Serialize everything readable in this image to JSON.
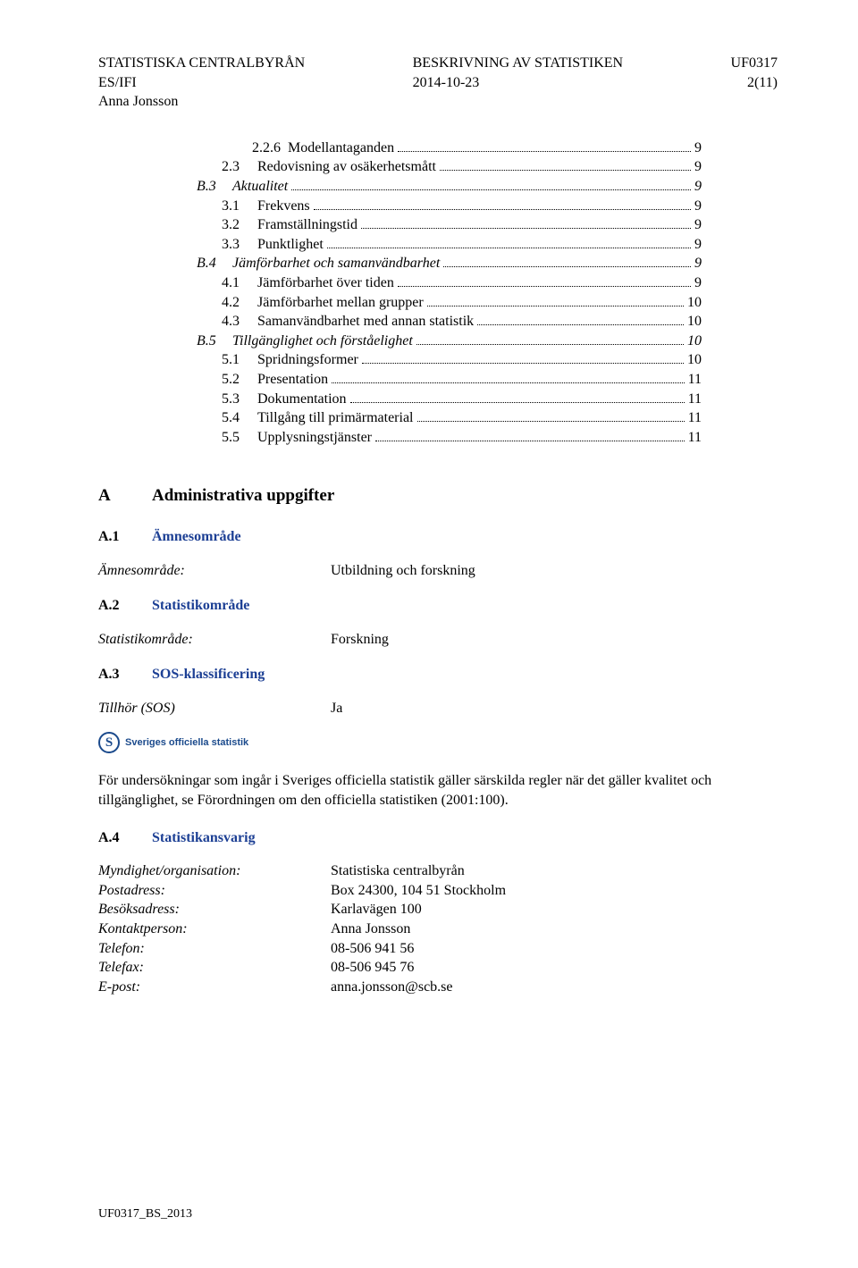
{
  "header": {
    "left_line1": "STATISTISKA CENTRALBYRÅN",
    "left_line2": "ES/IFI",
    "left_line3": "Anna Jonsson",
    "center_line1": "BESKRIVNING AV STATISTIKEN",
    "center_line2": "2014-10-23",
    "right_line1": "UF0317",
    "right_line2": "2(11)"
  },
  "toc": [
    {
      "indent": 2,
      "italic": false,
      "num": "2.2.6",
      "title": "Modellantaganden",
      "page": "9"
    },
    {
      "indent": 1,
      "italic": false,
      "num": "2.3",
      "title": "Redovisning av osäkerhetsmått",
      "page": "9"
    },
    {
      "indent": 0,
      "italic": true,
      "num": "B.3",
      "title": "Aktualitet",
      "page": "9"
    },
    {
      "indent": 1,
      "italic": false,
      "num": "3.1",
      "title": "Frekvens",
      "page": "9"
    },
    {
      "indent": 1,
      "italic": false,
      "num": "3.2",
      "title": "Framställningstid",
      "page": "9"
    },
    {
      "indent": 1,
      "italic": false,
      "num": "3.3",
      "title": "Punktlighet",
      "page": "9"
    },
    {
      "indent": 0,
      "italic": true,
      "num": "B.4",
      "title": "Jämförbarhet och samanvändbarhet",
      "page": "9"
    },
    {
      "indent": 1,
      "italic": false,
      "num": "4.1",
      "title": "Jämförbarhet över tiden",
      "page": "9"
    },
    {
      "indent": 1,
      "italic": false,
      "num": "4.2",
      "title": "Jämförbarhet mellan grupper",
      "page": "10"
    },
    {
      "indent": 1,
      "italic": false,
      "num": "4.3",
      "title": "Samanvändbarhet med annan statistik",
      "page": "10"
    },
    {
      "indent": 0,
      "italic": true,
      "num": "B.5",
      "title": "Tillgänglighet och förståelighet",
      "page": "10"
    },
    {
      "indent": 1,
      "italic": false,
      "num": "5.1",
      "title": "Spridningsformer",
      "page": "10"
    },
    {
      "indent": 1,
      "italic": false,
      "num": "5.2",
      "title": "Presentation",
      "page": "11"
    },
    {
      "indent": 1,
      "italic": false,
      "num": "5.3",
      "title": "Dokumentation",
      "page": "11"
    },
    {
      "indent": 1,
      "italic": false,
      "num": "5.4",
      "title": "Tillgång till primärmaterial",
      "page": "11"
    },
    {
      "indent": 1,
      "italic": false,
      "num": "5.5",
      "title": "Upplysningstjänster",
      "page": "11"
    }
  ],
  "sectionA": {
    "letter": "A",
    "title": "Administrativa uppgifter",
    "a1": {
      "num": "A.1",
      "title": "Ämnesområde",
      "key": "Ämnesområde:",
      "val": "Utbildning och forskning"
    },
    "a2": {
      "num": "A.2",
      "title": "Statistikområde",
      "key": "Statistikområde:",
      "val": "Forskning"
    },
    "a3": {
      "num": "A.3",
      "title": "SOS-klassificering",
      "key": "Tillhör (SOS)",
      "val": "Ja",
      "logo_text": "Sveriges officiella statistik",
      "paragraph": "För undersökningar som ingår i Sveriges officiella statistik gäller särskilda regler när det gäller kvalitet och tillgänglighet, se Förordningen om den officiella statistiken (2001:100)."
    },
    "a4": {
      "num": "A.4",
      "title": "Statistikansvarig",
      "rows": [
        {
          "key": "Myndighet/organisation:",
          "val": "Statistiska centralbyrån"
        },
        {
          "key": "Postadress:",
          "val": "Box 24300, 104 51 Stockholm"
        },
        {
          "key": "Besöksadress:",
          "val": "Karlavägen 100"
        },
        {
          "key": "Kontaktperson:",
          "val": "Anna Jonsson"
        },
        {
          "key": "Telefon:",
          "val": "08-506 941 56"
        },
        {
          "key": "Telefax:",
          "val": "08-506 945 76"
        },
        {
          "key": "E-post:",
          "val": "anna.jonsson@scb.se"
        }
      ]
    }
  },
  "footer": "UF0317_BS_2013",
  "colors": {
    "heading_blue": "#1c3f94",
    "logo_blue": "#1b4a8c",
    "text": "#000000",
    "background": "#ffffff"
  }
}
